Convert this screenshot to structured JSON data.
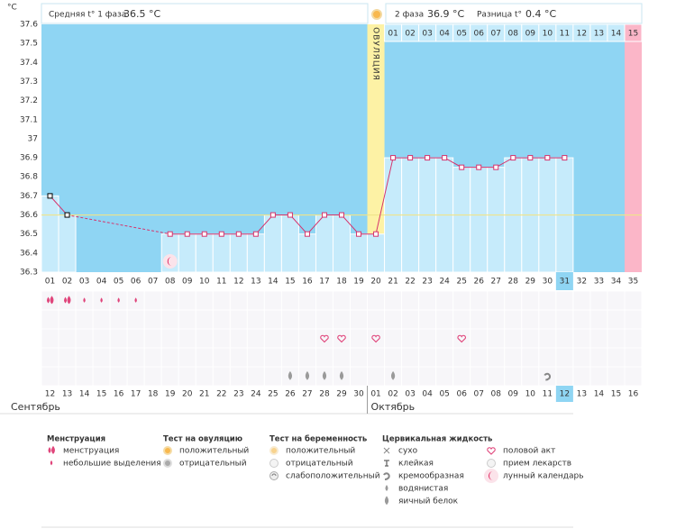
{
  "header": {
    "phase1_label": "Средняя t° 1 фаза",
    "phase1_value": "36.5 °C",
    "phase2_label": "2 фаза",
    "phase2_value": "36.9 °C",
    "diff_label": "Разница t°",
    "diff_value": "0.4 °C"
  },
  "chart_data": {
    "type": "line",
    "y_unit": "°C",
    "ovulation_label": "ОВУЛЯЦИЯ",
    "categories": [
      "01",
      "02",
      "03",
      "04",
      "05",
      "06",
      "07",
      "08",
      "09",
      "10",
      "11",
      "12",
      "13",
      "14",
      "15",
      "16",
      "17",
      "18",
      "19",
      "20",
      "21",
      "22",
      "23",
      "24",
      "25",
      "26",
      "27",
      "28",
      "29",
      "30",
      "31",
      "32",
      "33",
      "34",
      "35"
    ],
    "values": [
      36.7,
      36.6,
      null,
      null,
      null,
      null,
      null,
      36.5,
      36.5,
      36.5,
      36.5,
      36.5,
      36.5,
      36.6,
      36.6,
      36.5,
      36.6,
      36.6,
      36.5,
      36.5,
      36.9,
      36.9,
      36.9,
      36.9,
      36.85,
      36.85,
      36.85,
      36.9,
      36.9,
      36.9,
      36.9,
      null,
      null,
      null,
      null
    ],
    "color": "#d6336c",
    "bar_color": "#c6ebfb",
    "plot_color": "#8fd5f3",
    "ovulation_color": "#fdf2a5",
    "end_color": "#fbb6c8",
    "coverline": 36.6,
    "coverline_color": "#efe48a",
    "ylim": [
      36.3,
      37.6
    ],
    "yticks": [
      36.3,
      36.4,
      36.5,
      36.6,
      36.7,
      36.8,
      36.9,
      37,
      37.1,
      37.2,
      37.3,
      37.4,
      37.5,
      37.6
    ],
    "ovulation_category": "20",
    "end_category": "35",
    "today_category": "31",
    "phase2_days": [
      "01",
      "02",
      "03",
      "04",
      "05",
      "06",
      "07",
      "08",
      "09",
      "10",
      "11",
      "12",
      "13",
      "14",
      "15"
    ],
    "dates": [
      "12",
      "13",
      "14",
      "15",
      "16",
      "17",
      "18",
      "19",
      "20",
      "21",
      "22",
      "23",
      "24",
      "25",
      "26",
      "27",
      "28",
      "29",
      "30",
      "01",
      "02",
      "03",
      "04",
      "05",
      "06",
      "07",
      "08",
      "09",
      "10",
      "11",
      "12",
      "13",
      "14",
      "15",
      "16"
    ],
    "date_colors": [
      "#333",
      "#333",
      "#e0245e",
      "#e0245e",
      "#333",
      "#333",
      "#333",
      "#333",
      "#333",
      "#e0245e",
      "#e0245e",
      "#333",
      "#333",
      "#333",
      "#333",
      "#333",
      "#e0245e",
      "#e0245e",
      "#333",
      "#333",
      "#333",
      "#333",
      "#333",
      "#e0245e",
      "#e0245e",
      "#333",
      "#333",
      "#333",
      "#333",
      "#333",
      "#333",
      "#e0245e",
      "#333",
      "#333",
      "#333"
    ],
    "months": [
      "Сентябрь",
      "Октябрь"
    ],
    "plot_symbols": [
      null,
      null,
      null,
      null,
      null,
      null,
      null,
      "moon",
      null,
      null,
      null,
      null,
      null,
      null,
      null,
      null,
      null,
      null,
      null,
      null,
      null,
      null,
      null,
      null,
      null,
      null,
      null,
      null,
      null,
      null,
      null,
      null,
      null,
      null,
      null
    ],
    "symbol_rows": [
      [
        "drop2",
        "drop2",
        "drop",
        "drop",
        "drop",
        "drop",
        null,
        null,
        null,
        null,
        null,
        null,
        null,
        null,
        null,
        null,
        null,
        null,
        null,
        null,
        null,
        null,
        null,
        null,
        null,
        null,
        null,
        null,
        null,
        null,
        null,
        null,
        null,
        null,
        null
      ],
      [
        null,
        null,
        null,
        null,
        null,
        null,
        null,
        null,
        null,
        null,
        null,
        null,
        null,
        null,
        null,
        null,
        null,
        null,
        null,
        null,
        null,
        null,
        null,
        null,
        null,
        null,
        null,
        null,
        null,
        null,
        null,
        null,
        null,
        null,
        null
      ],
      [
        null,
        null,
        null,
        null,
        null,
        null,
        null,
        null,
        null,
        null,
        null,
        null,
        null,
        null,
        null,
        null,
        "heart",
        "heart",
        null,
        "heart",
        null,
        null,
        null,
        null,
        "heart",
        null,
        null,
        null,
        null,
        null,
        null,
        null,
        null,
        null,
        null
      ],
      [
        null,
        null,
        null,
        null,
        null,
        null,
        null,
        null,
        null,
        null,
        null,
        null,
        null,
        null,
        null,
        null,
        null,
        null,
        null,
        null,
        null,
        null,
        null,
        null,
        null,
        null,
        null,
        null,
        null,
        null,
        null,
        null,
        null,
        null,
        null
      ],
      [
        null,
        null,
        null,
        null,
        null,
        null,
        null,
        null,
        null,
        null,
        null,
        null,
        null,
        null,
        "drop-grey",
        "drop-grey",
        "drop-grey",
        "drop-grey",
        null,
        null,
        "drop-grey",
        null,
        null,
        null,
        null,
        null,
        null,
        null,
        null,
        "swirl",
        null,
        null,
        null,
        null,
        null
      ]
    ]
  },
  "legend": {
    "groups": [
      {
        "title": "Менструация",
        "items": [
          {
            "label": "менструация",
            "icon": "drop2"
          },
          {
            "label": "небольшие выделения",
            "icon": "drop"
          }
        ]
      },
      {
        "title": "Тест на овуляцию",
        "items": [
          {
            "label": "положительный",
            "icon": "sun"
          },
          {
            "label": "отрицательный",
            "icon": "circle-grey"
          }
        ]
      },
      {
        "title": "Тест на беременность",
        "items": [
          {
            "label": "положительный",
            "icon": "sun-pale"
          },
          {
            "label": "отрицательный",
            "icon": "circle-white"
          },
          {
            "label": "слабоположительный",
            "icon": "circle-swirl"
          }
        ]
      },
      {
        "title": "Цервикальная жидкость",
        "items": [
          {
            "label": "сухо",
            "icon": "cross"
          },
          {
            "label": "клейкая",
            "icon": "tee"
          },
          {
            "label": "кремообразная",
            "icon": "swirl"
          },
          {
            "label": "водянистая",
            "icon": "drop-grey-small"
          },
          {
            "label": "яичный белок",
            "icon": "drop-grey"
          }
        ]
      },
      {
        "items": [
          {
            "label": "половой акт",
            "icon": "heart"
          },
          {
            "label": "прием лекарств",
            "icon": "circle-white"
          },
          {
            "label": "лунный календарь",
            "icon": "moon"
          }
        ]
      }
    ]
  }
}
